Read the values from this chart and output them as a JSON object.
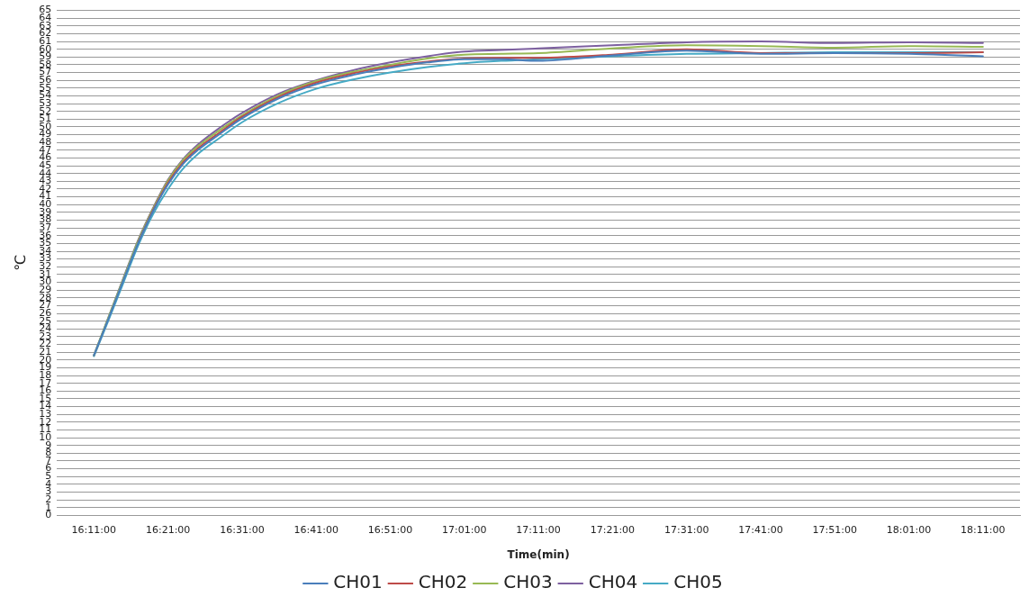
{
  "chart_data": {
    "type": "line",
    "xlabel": "Time(min)",
    "ylabel": "℃",
    "x": [
      16.1833,
      16.2167,
      16.25,
      16.2833,
      16.3167,
      16.35,
      16.3833,
      16.4167,
      16.4667,
      16.5167,
      16.6,
      16.6833,
      16.7667,
      16.85,
      16.9333,
      17.0167,
      17.1,
      17.1833,
      17.35,
      17.5167,
      17.6833,
      17.85,
      18.0167,
      18.1833
    ],
    "series": [
      {
        "name": "CH01",
        "color": "#4a7ebb",
        "values": [
          20.6,
          25.4,
          30.3,
          35.1,
          39.2,
          42.6,
          45.2,
          47.0,
          49.1,
          51.1,
          53.7,
          55.5,
          56.7,
          57.6,
          58.3,
          58.7,
          58.7,
          58.5,
          59.2,
          59.8,
          59.4,
          59.5,
          59.4,
          59.1
        ]
      },
      {
        "name": "CH02",
        "color": "#be4b48",
        "values": [
          null,
          null,
          null,
          35.2,
          39.3,
          42.8,
          45.4,
          47.2,
          49.3,
          51.3,
          53.9,
          55.7,
          56.9,
          57.8,
          58.4,
          58.8,
          58.9,
          58.9,
          59.3,
          60.0,
          59.5,
          59.5,
          59.5,
          59.6
        ]
      },
      {
        "name": "CH03",
        "color": "#98b954",
        "values": [
          20.6,
          25.6,
          30.5,
          35.4,
          39.5,
          43.1,
          45.7,
          47.5,
          49.6,
          51.5,
          54.1,
          55.9,
          57.1,
          58.0,
          58.8,
          59.3,
          59.4,
          59.5,
          60.1,
          60.5,
          60.4,
          60.2,
          60.4,
          60.3
        ]
      },
      {
        "name": "CH04",
        "color": "#7d60a0",
        "values": [
          20.6,
          25.6,
          30.6,
          35.5,
          39.6,
          43.2,
          45.8,
          47.7,
          49.9,
          51.8,
          54.3,
          56.0,
          57.3,
          58.3,
          59.1,
          59.7,
          59.9,
          60.1,
          60.5,
          60.9,
          61.0,
          60.8,
          60.9,
          60.8
        ]
      },
      {
        "name": "CH05",
        "color": "#46aac5",
        "values": [
          20.5,
          25.2,
          30.0,
          34.8,
          38.8,
          42.0,
          44.6,
          46.5,
          48.6,
          50.6,
          53.1,
          54.9,
          56.1,
          57.0,
          57.7,
          58.2,
          58.5,
          58.7,
          59.1,
          59.4,
          59.5,
          59.6,
          59.6,
          59.6
        ]
      }
    ],
    "xlim": [
      16.1,
      18.2667
    ],
    "xticks": [
      {
        "value": 16.1833,
        "label": "16:11:00"
      },
      {
        "value": 16.35,
        "label": "16:21:00"
      },
      {
        "value": 16.5167,
        "label": "16:31:00"
      },
      {
        "value": 16.6833,
        "label": "16:41:00"
      },
      {
        "value": 16.85,
        "label": "16:51:00"
      },
      {
        "value": 17.0167,
        "label": "17:01:00"
      },
      {
        "value": 17.1833,
        "label": "17:11:00"
      },
      {
        "value": 17.35,
        "label": "17:21:00"
      },
      {
        "value": 17.5167,
        "label": "17:31:00"
      },
      {
        "value": 17.6833,
        "label": "17:41:00"
      },
      {
        "value": 17.85,
        "label": "17:51:00"
      },
      {
        "value": 18.0167,
        "label": "18:01:00"
      },
      {
        "value": 18.1833,
        "label": "18:11:00"
      }
    ],
    "ylim": [
      0,
      65
    ],
    "yticks": [
      0,
      1,
      2,
      3,
      4,
      5,
      6,
      7,
      8,
      9,
      10,
      11,
      12,
      13,
      14,
      15,
      16,
      17,
      18,
      19,
      20,
      21,
      22,
      23,
      24,
      25,
      26,
      27,
      28,
      29,
      30,
      31,
      32,
      33,
      34,
      35,
      36,
      37,
      38,
      39,
      40,
      41,
      42,
      43,
      44,
      45,
      46,
      47,
      48,
      49,
      50,
      51,
      52,
      53,
      54,
      55,
      56,
      57,
      58,
      59,
      60,
      61,
      62,
      63,
      64,
      65
    ],
    "grid": "y",
    "legend": "bottom",
    "marker": "none",
    "line_style": "solid"
  }
}
